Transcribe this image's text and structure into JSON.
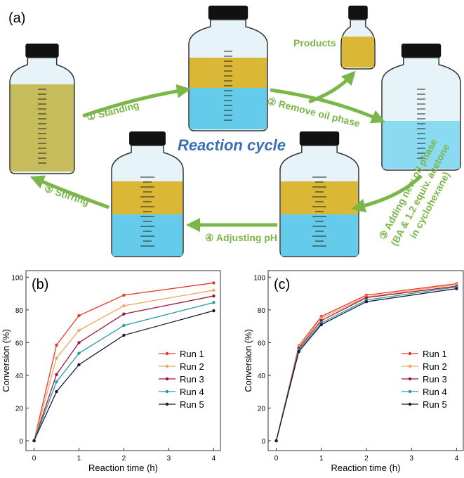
{
  "diagram": {
    "panel_label": "(a)",
    "products": "Products",
    "step1": "① Standing",
    "step2": "② Remove oil phase",
    "cycle_title": "Reaction cycle",
    "step3_line1": "③ Adding new oil phase",
    "step3_line2": "(BA & 1.2 equiv. acetone",
    "step3_line3": "in cyclohexane)",
    "step4": "④ Adjusting pH",
    "step5": "⑤ Stirring"
  },
  "chart_data": [
    {
      "type": "line",
      "panel_label": "(b)",
      "x_label": "Reaction time (h)",
      "y_label": "Conversion (%)",
      "x": [
        0,
        0.5,
        1,
        2,
        4
      ],
      "xlim": [
        -0.18,
        4.15
      ],
      "ylim": [
        -6,
        104
      ],
      "xticks": [
        0,
        1,
        2,
        3,
        4
      ],
      "yticks": [
        0,
        20,
        40,
        60,
        80,
        100
      ],
      "series": [
        {
          "name": "Run 1",
          "color": "#e8392a",
          "values": [
            0,
            58.5,
            76.5,
            89,
            96.5
          ]
        },
        {
          "name": "Run 2",
          "color": "#f4a460",
          "values": [
            0,
            50.5,
            67.5,
            82.5,
            92
          ]
        },
        {
          "name": "Run 3",
          "color": "#a0153e",
          "values": [
            0,
            40.5,
            60,
            77.5,
            88.5
          ]
        },
        {
          "name": "Run 4",
          "color": "#2a9aa6",
          "values": [
            0,
            36,
            53.5,
            70.5,
            84.5
          ]
        },
        {
          "name": "Run 5",
          "color": "#1a1a3a",
          "values": [
            0,
            30,
            46.5,
            64.5,
            79.5
          ]
        }
      ]
    },
    {
      "type": "line",
      "panel_label": "(c)",
      "x_label": "Reaction time (h)",
      "y_label": "Conversion (%)",
      "x": [
        0,
        0.5,
        1,
        2,
        4
      ],
      "xlim": [
        -0.18,
        4.15
      ],
      "ylim": [
        -6,
        104
      ],
      "xticks": [
        0,
        1,
        2,
        3,
        4
      ],
      "yticks": [
        0,
        20,
        40,
        60,
        80,
        100
      ],
      "series": [
        {
          "name": "Run 1",
          "color": "#e8392a",
          "values": [
            0,
            58,
            76,
            89,
            96
          ]
        },
        {
          "name": "Run 2",
          "color": "#f4a460",
          "values": [
            0,
            57.5,
            75,
            88,
            95.5
          ]
        },
        {
          "name": "Run 3",
          "color": "#a0153e",
          "values": [
            0,
            56.5,
            73.5,
            87.5,
            94.5
          ]
        },
        {
          "name": "Run 4",
          "color": "#2a9aa6",
          "values": [
            0,
            55.5,
            72,
            86,
            94
          ]
        },
        {
          "name": "Run 5",
          "color": "#1a1a3a",
          "values": [
            0,
            54.5,
            71,
            85,
            93
          ]
        }
      ]
    }
  ]
}
